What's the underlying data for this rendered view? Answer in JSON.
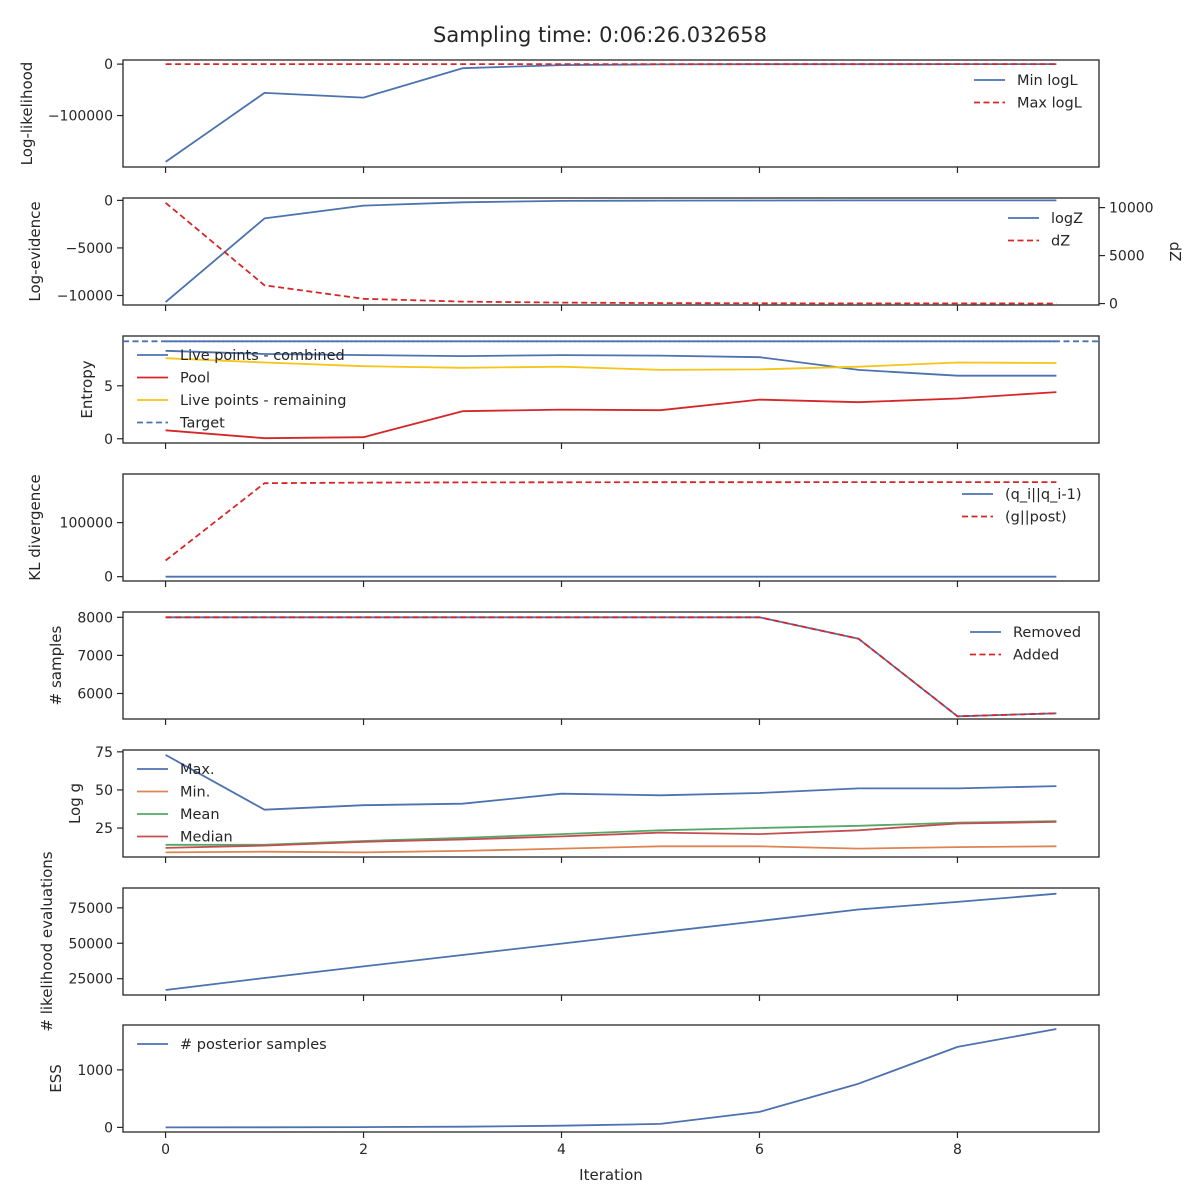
{
  "title": "Sampling time: 0:06:26.032658",
  "xlabel": "Iteration",
  "x_ticks": [
    0,
    2,
    4,
    6,
    8
  ],
  "colors": {
    "blue": "#4c72b0",
    "red": "#d62728",
    "yellow": "#f5c518",
    "orange": "#dd8452",
    "green": "#55a868",
    "brickred": "#c44e52",
    "axis": "#262626"
  },
  "chart_data": [
    {
      "type": "line",
      "ylabel": "Log-likelihood",
      "x": [
        0,
        1,
        2,
        3,
        4,
        5,
        6,
        7,
        8,
        9
      ],
      "ylim": [
        -200000,
        8000
      ],
      "yticks": [
        0,
        -100000
      ],
      "legend": "upper-right",
      "series": [
        {
          "name": "Min logL",
          "color": "#4c72b0",
          "dash": false,
          "values": [
            -190000,
            -56000,
            -65000,
            -8000,
            -2000,
            -500,
            -200,
            -100,
            -50,
            -30
          ]
        },
        {
          "name": "Max logL",
          "color": "#d62728",
          "dash": true,
          "values": [
            0,
            0,
            0,
            0,
            0,
            0,
            0,
            0,
            0,
            0
          ]
        }
      ]
    },
    {
      "type": "line",
      "ylabel": "Log-evidence",
      "y2label": "dZ",
      "x": [
        0,
        1,
        2,
        3,
        4,
        5,
        6,
        7,
        8,
        9
      ],
      "ylim": [
        -11000,
        250
      ],
      "yticks": [
        0,
        -5000,
        -10000
      ],
      "y2lim": [
        -150,
        11000
      ],
      "y2ticks": [
        0,
        5000,
        10000
      ],
      "legend": "upper-right",
      "series": [
        {
          "name": "logZ",
          "color": "#4c72b0",
          "dash": false,
          "axis": "left",
          "values": [
            -10700,
            -1900,
            -550,
            -200,
            -50,
            -20,
            -10,
            -5,
            -3,
            -2
          ]
        },
        {
          "name": "dZ",
          "color": "#d62728",
          "dash": true,
          "axis": "right",
          "values": [
            10500,
            1900,
            500,
            200,
            100,
            50,
            30,
            20,
            15,
            10
          ]
        }
      ]
    },
    {
      "type": "line",
      "ylabel": "Entropy",
      "x": [
        0,
        1,
        2,
        3,
        4,
        5,
        6,
        7,
        8,
        9
      ],
      "ylim": [
        -0.4,
        9.7
      ],
      "yticks": [
        0,
        5
      ],
      "legend": "upper-left",
      "series": [
        {
          "name": "Live points - combined",
          "color": "#4c72b0",
          "dash": false,
          "values": [
            8.3,
            8.0,
            7.9,
            7.8,
            7.9,
            7.85,
            7.7,
            6.5,
            5.95,
            5.95
          ]
        },
        {
          "name": "Pool",
          "color": "#d62728",
          "dash": false,
          "values": [
            0.8,
            0.05,
            0.15,
            2.6,
            2.75,
            2.7,
            3.7,
            3.45,
            3.8,
            4.4
          ]
        },
        {
          "name": "Live points - remaining",
          "color": "#f5c518",
          "dash": false,
          "values": [
            7.6,
            7.2,
            6.85,
            6.7,
            6.8,
            6.5,
            6.55,
            6.8,
            7.2,
            7.15
          ]
        },
        {
          "name": "Target",
          "color": "#4c72b0",
          "dash": true,
          "values": [
            9.2,
            9.2,
            9.2,
            9.2,
            9.2,
            9.2,
            9.2,
            9.2,
            9.2,
            9.2
          ]
        }
      ]
    },
    {
      "type": "line",
      "ylabel": "KL divergence",
      "x": [
        0,
        1,
        2,
        3,
        4,
        5,
        6,
        7,
        8,
        9
      ],
      "ylim": [
        -8000,
        190000
      ],
      "yticks": [
        0,
        100000
      ],
      "legend": "upper-right",
      "series": [
        {
          "name": "(q_i||q_i-1)",
          "color": "#4c72b0",
          "dash": false,
          "values": [
            0,
            0,
            0,
            0,
            0,
            0,
            0,
            0,
            0,
            0
          ]
        },
        {
          "name": "(g||post)",
          "color": "#d62728",
          "dash": true,
          "values": [
            30000,
            173000,
            174000,
            174500,
            174700,
            174800,
            174900,
            175000,
            175000,
            175000
          ]
        }
      ]
    },
    {
      "type": "line",
      "ylabel": "# samples",
      "x": [
        0,
        1,
        2,
        3,
        4,
        5,
        6,
        7,
        8,
        9
      ],
      "ylim": [
        5330,
        8140
      ],
      "yticks": [
        8000,
        7000,
        6000
      ],
      "legend": "upper-right",
      "series": [
        {
          "name": "Removed",
          "color": "#4c72b0",
          "dash": false,
          "values": [
            8000,
            8000,
            8000,
            8000,
            8000,
            8000,
            8000,
            7440,
            5400,
            5480
          ]
        },
        {
          "name": "Added",
          "color": "#d62728",
          "dash": true,
          "values": [
            8000,
            8000,
            8000,
            8000,
            8000,
            8000,
            8000,
            7440,
            5400,
            5480
          ]
        }
      ]
    },
    {
      "type": "line",
      "ylabel": "Log g",
      "x": [
        0,
        1,
        2,
        3,
        4,
        5,
        6,
        7,
        8,
        9
      ],
      "ylim": [
        6,
        76.2
      ],
      "yticks": [
        75,
        50,
        25
      ],
      "legend": "upper-left",
      "series": [
        {
          "name": "Max.",
          "color": "#4c72b0",
          "dash": false,
          "values": [
            73,
            37,
            40,
            41,
            47.5,
            46.5,
            48,
            51,
            51,
            52.5
          ]
        },
        {
          "name": "Min.",
          "color": "#dd8452",
          "dash": false,
          "values": [
            9,
            9.5,
            9,
            10,
            11.5,
            13,
            13,
            11.5,
            12.5,
            13
          ]
        },
        {
          "name": "Mean",
          "color": "#55a868",
          "dash": false,
          "values": [
            14,
            14,
            16.5,
            18.5,
            21,
            23.5,
            25,
            26.5,
            28.5,
            29.5
          ]
        },
        {
          "name": "Median",
          "color": "#c44e52",
          "dash": false,
          "values": [
            12,
            13.5,
            16,
            17.5,
            19.5,
            22,
            21,
            23.5,
            28,
            29
          ]
        }
      ]
    },
    {
      "type": "line",
      "ylabel": "# likelihood evaluations",
      "x": [
        0,
        1,
        2,
        3,
        4,
        5,
        6,
        7,
        8,
        9
      ],
      "ylim": [
        13500,
        89000
      ],
      "yticks": [
        75000,
        50000,
        25000
      ],
      "legend": "none",
      "series": [
        {
          "color": "#4c72b0",
          "dash": false,
          "values": [
            17000,
            25500,
            33700,
            41700,
            49800,
            57800,
            65700,
            73800,
            79200,
            85000
          ]
        }
      ]
    },
    {
      "type": "line",
      "ylabel": "ESS",
      "xlabel": "Iteration",
      "x": [
        0,
        1,
        2,
        3,
        4,
        5,
        6,
        7,
        8,
        9
      ],
      "ylim": [
        -80,
        1780
      ],
      "yticks": [
        1000,
        0
      ],
      "legend": "upper-left",
      "series": [
        {
          "name": "# posterior samples",
          "color": "#4c72b0",
          "dash": false,
          "values": [
            0,
            2,
            5,
            12,
            30,
            60,
            270,
            760,
            1400,
            1710
          ]
        }
      ]
    }
  ]
}
